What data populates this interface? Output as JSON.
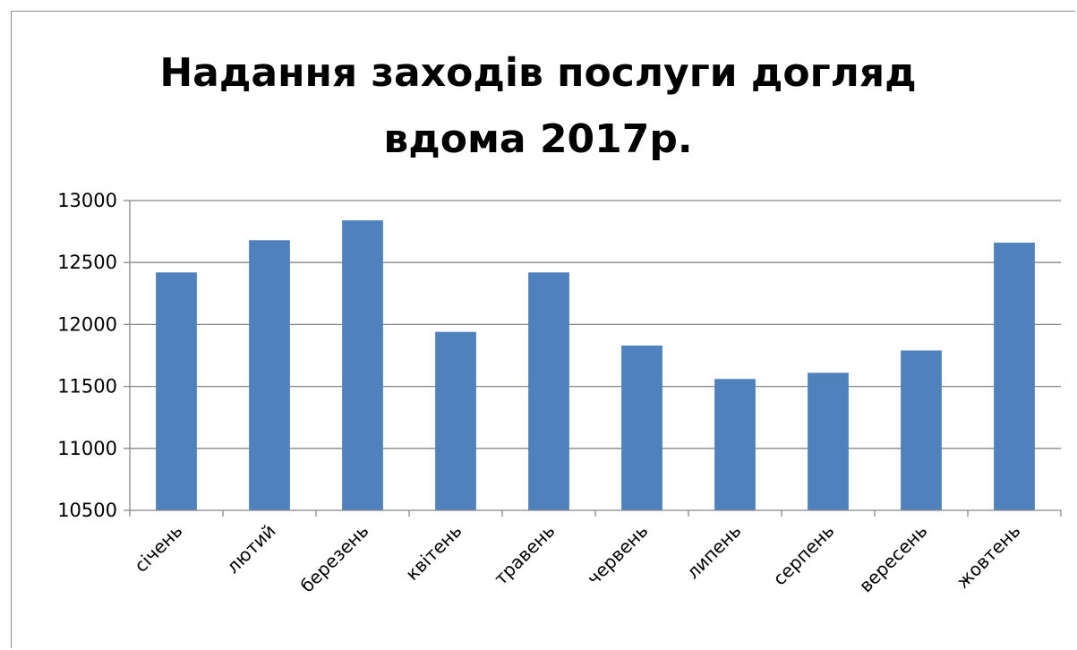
{
  "chart_data": {
    "type": "bar",
    "title_lines": [
      "Надання заходів послуги догляд",
      "вдома 2017р."
    ],
    "categories": [
      "січень",
      "лютий",
      "березень",
      "квітень",
      "травень",
      "червень",
      "липень",
      "серпень",
      "вересень",
      "жовтень"
    ],
    "values": [
      12420,
      12680,
      12840,
      11940,
      12420,
      11830,
      11560,
      11610,
      11790,
      12660
    ],
    "ylim": [
      10500,
      13000
    ],
    "yticks": [
      10500,
      11000,
      11500,
      12000,
      12500,
      13000
    ],
    "grid": true,
    "bar_color": "#4f81bd",
    "legend": "none"
  }
}
